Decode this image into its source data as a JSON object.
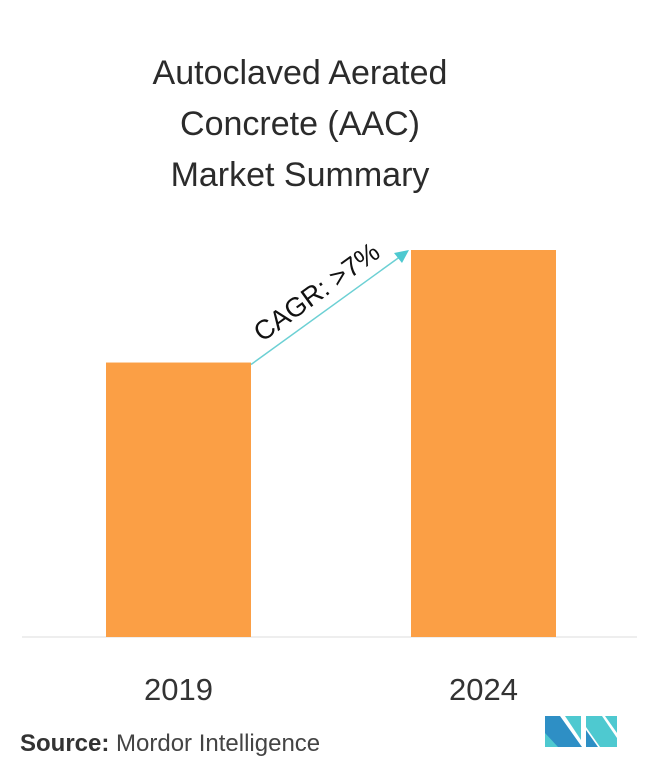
{
  "chart_data": {
    "type": "bar",
    "title": [
      "Autoclaved Aerated",
      "Concrete (AAC)",
      "Market Summary"
    ],
    "categories": [
      "2019",
      "2024"
    ],
    "values": [
      1.0,
      1.41
    ],
    "bar_color": "#fb9f45",
    "annotation": {
      "text": "CAGR: >7%",
      "color": "#6cd0d4"
    },
    "grid": false,
    "xlabel": "",
    "ylabel": ""
  },
  "source": {
    "label": "Source:",
    "text": "Mordor Intelligence"
  },
  "logo": {
    "colors": [
      "#2e8fc5",
      "#4ec9d0"
    ]
  }
}
